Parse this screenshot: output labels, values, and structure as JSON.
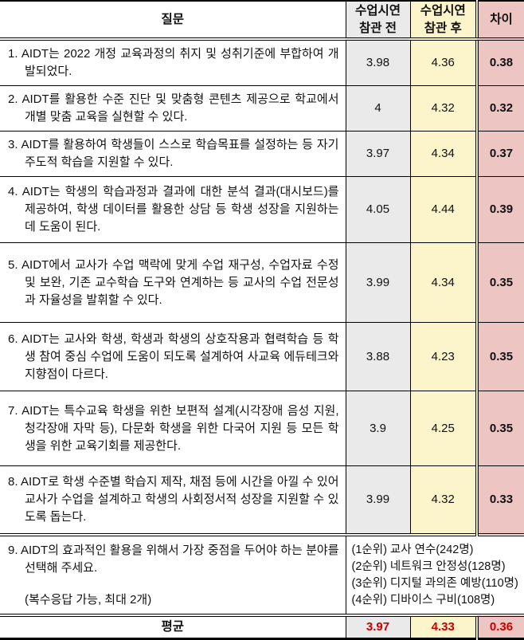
{
  "header": {
    "question": "질문",
    "before": "수업시연\n참관 전",
    "after": "수업시연\n참관 후",
    "diff": "차이"
  },
  "rows": [
    {
      "question": "1. AIDT는 2022 개정 교육과정의 취지 및 성취기준에 부합하여 개발되었다.",
      "before": "3.98",
      "after": "4.36",
      "diff": "0.38"
    },
    {
      "question": "2. AIDT를 활용한 수준 진단 및 맞춤형 콘텐츠 제공으로 학교에서 개별 맞춤 교육을 실현할 수 있다.",
      "before": "4",
      "after": "4.32",
      "diff": "0.32"
    },
    {
      "question": "3. AIDT를 활용하여 학생들이 스스로 학습목표를 설정하는 등 자기주도적 학습을 지원할 수 있다.",
      "before": "3.97",
      "after": "4.34",
      "diff": "0.37"
    },
    {
      "question": "4. AIDT는 학생의 학습과정과 결과에 대한 분석 결과(대시보드)를 제공하여, 학생 데이터를 활용한 상담 등 학생 성장을 지원하는데 도움이 된다.",
      "before": "4.05",
      "after": "4.44",
      "diff": "0.39"
    },
    {
      "question": "5. AIDT에서 교사가 수업 맥락에 맞게 수업 재구성, 수업자료 수정 및 보완, 기존 교수학습 도구와 연계하는 등 교사의 수업 전문성과 자율성을 발휘할 수 있다.",
      "before": "3.99",
      "after": "4.34",
      "diff": "0.35"
    },
    {
      "question": "6. AIDT는 교사와 학생, 학생과 학생의 상호작용과 협력학습 등 학생 참여 중심 수업에 도움이 되도록 설계하여 사교육 에듀테크와 지향점이 다르다.",
      "before": "3.88",
      "after": "4.23",
      "diff": "0.35"
    },
    {
      "question": "7. AIDT는 특수교육 학생을 위한 보편적 설계(시각장애 음성 지원, 청각장애 자막 등), 다문화 학생을 위한 다국어 지원 등 모든 학생을 위한 교육기회를 제공한다.",
      "before": "3.9",
      "after": "4.25",
      "diff": "0.35"
    },
    {
      "question": "8. AIDT로 학생 수준별 학습지 제작, 채점 등에 시간을 아낄 수 있어 교사가 수업을 설계하고 학생의 사회정서적 성장을 지원할 수 있도록 돕는다.",
      "before": "3.99",
      "after": "4.32",
      "diff": "0.33"
    }
  ],
  "row9": {
    "question": "9. AIDT의 효과적인 활용을 위해서 가장 중점을 두어야 하는 분야를 선택해 주세요.",
    "note": "(복수응답 가능, 최대 2개)",
    "answers": [
      "(1순위) 교사 연수(242명)",
      "(2순위) 네트워크 안정성(128명)",
      "(3순위) 디지털 과의존 예방(110명)",
      "(4순위) 디바이스 구비(108명)"
    ]
  },
  "footer": {
    "label": "평균",
    "before": "3.97",
    "after": "4.33",
    "diff": "0.36"
  },
  "colors": {
    "before_column_bg": "#eaeaea",
    "after_column_bg": "#fcf4cb",
    "diff_column_bg": "#edc5c3",
    "average_value_text": "#cc0000",
    "border": "#000000"
  }
}
